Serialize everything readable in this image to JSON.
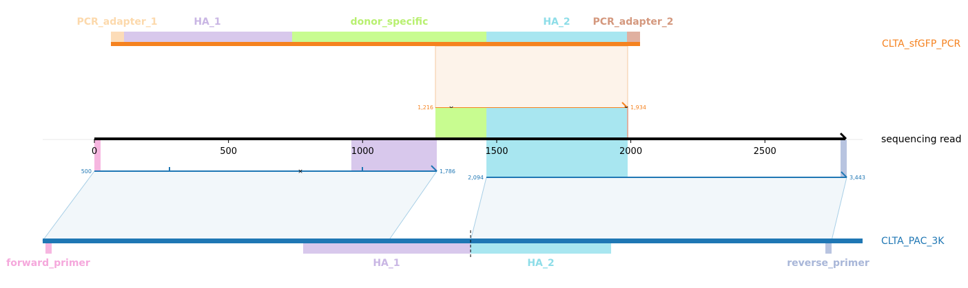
{
  "colors": {
    "pcr_adapter_1": "#fcdcb8",
    "pcr_adapter_1_label": "#fcd9ac",
    "ha1": "#d8c8ec",
    "ha1_label": "#c9b6e4",
    "donor_specific": "#c8fc90",
    "donor_specific_label": "#b8f070",
    "ha2": "#a8e6f0",
    "ha2_label": "#8ddde8",
    "pcr_adapter_2": "#e0b0a0",
    "pcr_adapter_2_label": "#d4987e",
    "pcr_bar": "#f5821f",
    "pcr_shade": "#fdf3ea",
    "read_line": "#000000",
    "plasmid_bar": "#1f77b4",
    "plasmid_shade": "#f2f7fa",
    "forward_primer": "#f6b6e0",
    "forward_primer_label": "#f5a8dc",
    "reverse_primer": "#b8c4e0",
    "reverse_primer_label": "#a8b6d8"
  },
  "top_sequence": {
    "name": "CLTA_sfGFP_PCR",
    "features": [
      {
        "key": "pcr_adapter_1",
        "label": "PCR_adapter_1"
      },
      {
        "key": "ha1",
        "label": "HA_1"
      },
      {
        "key": "donor_specific",
        "label": "donor_specific"
      },
      {
        "key": "ha2",
        "label": "HA_2"
      },
      {
        "key": "pcr_adapter_2",
        "label": "PCR_adapter_2"
      }
    ],
    "alignment_start": "1,216",
    "alignment_end": "1,934"
  },
  "read": {
    "name": "sequencing read",
    "axis_min": 0,
    "axis_max": 2800,
    "ticks": [
      {
        "value": 0,
        "label": "0"
      },
      {
        "value": 500,
        "label": "500"
      },
      {
        "value": 1000,
        "label": "1000"
      },
      {
        "value": 1500,
        "label": "1500"
      },
      {
        "value": 2000,
        "label": "2000"
      },
      {
        "value": 2500,
        "label": "2500"
      }
    ]
  },
  "bottom_sequence": {
    "name": "CLTA_PAC_3K",
    "features": [
      {
        "key": "forward_primer",
        "label": "forward_primer"
      },
      {
        "key": "ha1",
        "label": "HA_1"
      },
      {
        "key": "ha2",
        "label": "HA_2"
      },
      {
        "key": "reverse_primer",
        "label": "reverse_primer"
      }
    ],
    "alignment_1_start": "500",
    "alignment_1_end": "1,786",
    "alignment_2_start": "2,094",
    "alignment_2_end": "3,443"
  }
}
